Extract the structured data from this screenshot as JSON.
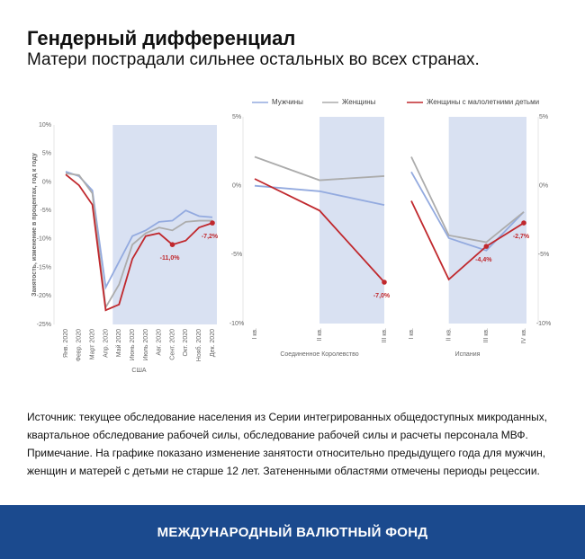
{
  "header": {
    "title": "Гендерный дифференциал",
    "subtitle": "Матери пострадали сильнее остальных во всех странах."
  },
  "chart_data": [
    {
      "type": "line",
      "y_label": "Занятость, изменение в процентах, год к году",
      "x_label": "США",
      "categories": [
        "Янв. 2020",
        "Февр. 2020",
        "Март 2020",
        "Апр. 2020",
        "Май 2020",
        "Июнь 2020",
        "Июль 2020",
        "Авг. 2020",
        "Сент. 2020",
        "Окт. 2020",
        "Нояб. 2020",
        "Дек. 2020"
      ],
      "shade": [
        "Май 2020",
        "Дек. 2020"
      ],
      "axis_side": "left",
      "ylim": [
        -25,
        10
      ],
      "yticks": [
        {
          "value": 10,
          "label": "10%"
        },
        {
          "value": 5,
          "label": "5%"
        },
        {
          "value": 0,
          "label": "0%"
        },
        {
          "value": -5,
          "label": "-5%"
        },
        {
          "value": -10,
          "label": "-10%"
        },
        {
          "value": -15,
          "label": "-15%"
        },
        {
          "value": -20,
          "label": "-20%"
        },
        {
          "value": -25,
          "label": "-25%"
        }
      ],
      "series": [
        {
          "name": "Мужчины",
          "color": "#93aadf",
          "values": [
            1.8,
            1.0,
            -1.5,
            -18.5,
            -14,
            -9.5,
            -8.5,
            -7,
            -6.8,
            -5,
            -6,
            -6.2
          ]
        },
        {
          "name": "Женщины",
          "color": "#acacac",
          "values": [
            1.5,
            1.2,
            -2,
            -22,
            -18,
            -11,
            -9,
            -8,
            -8.5,
            -7,
            -6.8,
            -6.8
          ]
        },
        {
          "name": "Женщины с малолетними детьми",
          "color": "#c0282d",
          "values": [
            1.3,
            -0.6,
            -4,
            -22.5,
            -21.5,
            -13.5,
            -9.5,
            -9,
            -11.0,
            -10.3,
            -8,
            -7.2
          ],
          "value_labels": [
            null,
            null,
            null,
            null,
            null,
            null,
            null,
            null,
            "-11,0%",
            null,
            null,
            "-7,2%"
          ]
        }
      ]
    },
    {
      "type": "line",
      "x_label": "Соединенное Королевство",
      "categories": [
        "I кв.",
        "II кв.",
        "III кв."
      ],
      "shade": [
        "II кв.",
        "III кв."
      ],
      "axis_side": "left",
      "ylim": [
        -10,
        5
      ],
      "yticks": [
        {
          "value": 5,
          "label": "5%"
        },
        {
          "value": 0,
          "label": "0%"
        },
        {
          "value": -5,
          "label": "-5%"
        },
        {
          "value": -10,
          "label": "-10%"
        }
      ],
      "series": [
        {
          "name": "Мужчины",
          "color": "#93aadf",
          "values": [
            0,
            -0.4,
            -1.4
          ]
        },
        {
          "name": "Женщины",
          "color": "#acacac",
          "values": [
            2.1,
            0.4,
            0.7
          ]
        },
        {
          "name": "Женщины с малолетними детьми",
          "color": "#c0282d",
          "values": [
            0.5,
            -1.8,
            -7.0
          ],
          "value_labels": [
            null,
            null,
            "-7,0%"
          ]
        }
      ]
    },
    {
      "type": "line",
      "x_label": "Испания",
      "categories": [
        "I кв.",
        "II кв.",
        "III кв.",
        "IV кв."
      ],
      "shade": [
        "II кв.",
        "IV кв."
      ],
      "axis_side": "right",
      "ylim": [
        -10,
        5
      ],
      "yticks": [
        {
          "value": 5,
          "label": "5%"
        },
        {
          "value": 0,
          "label": "0%"
        },
        {
          "value": -5,
          "label": "-5%"
        },
        {
          "value": -10,
          "label": "-10%"
        }
      ],
      "series": [
        {
          "name": "Мужчины",
          "color": "#93aadf",
          "values": [
            1,
            -3.8,
            -4.7,
            -1.9
          ]
        },
        {
          "name": "Женщины",
          "color": "#acacac",
          "values": [
            2.1,
            -3.6,
            -4.1,
            -1.9
          ]
        },
        {
          "name": "Женщины с малолетними детьми",
          "color": "#c0282d",
          "values": [
            -1.1,
            -6.8,
            -4.4,
            -2.7
          ],
          "value_labels": [
            null,
            null,
            "-4,4%",
            "-2,7%"
          ]
        }
      ]
    }
  ],
  "footer": {
    "source": "Источник: текущее обследование населения из Серии интегрированных общедоступных микроданных, квартальное обследование рабочей силы, обследование рабочей силы и расчеты персонала МВФ. Примечание. На графике показано изменение занятости относительно предыдущего года для мужчин, женщин и матерей с детьми не старше 12 лет. Затененными областями отмечены периоды рецессии.",
    "brand": "МЕЖДУНАРОДНЫЙ ВАЛЮТНЫЙ ФОНД"
  }
}
